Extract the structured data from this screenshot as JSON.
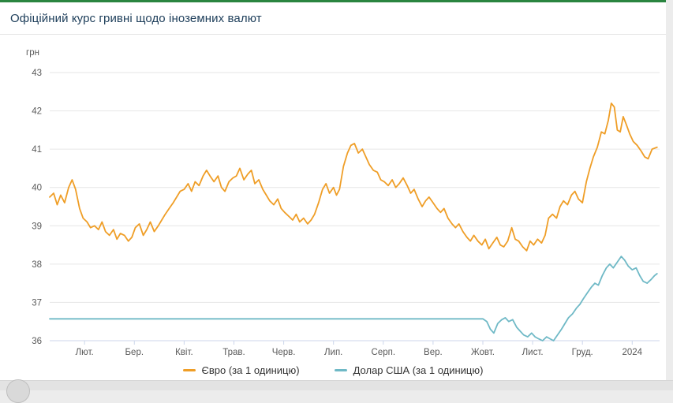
{
  "header": {
    "title": "Офіційний курс гривні щодо іноземних валют"
  },
  "chart_data": {
    "type": "line",
    "title": "Офіційний курс гривні щодо іноземних валют",
    "xlabel": "",
    "ylabel": "грн",
    "ylim": [
      36,
      43
    ],
    "y_ticks": [
      36,
      37,
      38,
      39,
      40,
      41,
      42,
      43
    ],
    "xlim": [
      0.3,
      12.55
    ],
    "x_unit": "months since 2023-01-01 (1 = Feb 1, 12 = Jan 1 2024)",
    "grid": "horizontal",
    "legend_position": "bottom",
    "x_ticks": [
      {
        "label": "Лют.",
        "x": 1
      },
      {
        "label": "Бер.",
        "x": 2
      },
      {
        "label": "Квіт.",
        "x": 3
      },
      {
        "label": "Трав.",
        "x": 4
      },
      {
        "label": "Черв.",
        "x": 5
      },
      {
        "label": "Лип.",
        "x": 6
      },
      {
        "label": "Серп.",
        "x": 7
      },
      {
        "label": "Вер.",
        "x": 8
      },
      {
        "label": "Жовт.",
        "x": 9
      },
      {
        "label": "Лист.",
        "x": 10
      },
      {
        "label": "Груд.",
        "x": 11
      },
      {
        "label": "2024",
        "x": 12
      }
    ],
    "series": [
      {
        "name": "Євро (за 1 одиницю)",
        "color": "#ef9e27",
        "points": [
          [
            0.3,
            39.75
          ],
          [
            0.38,
            39.85
          ],
          [
            0.45,
            39.55
          ],
          [
            0.52,
            39.8
          ],
          [
            0.6,
            39.6
          ],
          [
            0.68,
            40.0
          ],
          [
            0.75,
            40.2
          ],
          [
            0.82,
            39.95
          ],
          [
            0.9,
            39.45
          ],
          [
            0.97,
            39.2
          ],
          [
            1.05,
            39.1
          ],
          [
            1.12,
            38.95
          ],
          [
            1.2,
            39.0
          ],
          [
            1.28,
            38.9
          ],
          [
            1.35,
            39.1
          ],
          [
            1.42,
            38.85
          ],
          [
            1.5,
            38.75
          ],
          [
            1.58,
            38.9
          ],
          [
            1.65,
            38.65
          ],
          [
            1.72,
            38.8
          ],
          [
            1.8,
            38.75
          ],
          [
            1.88,
            38.6
          ],
          [
            1.95,
            38.7
          ],
          [
            2.02,
            38.95
          ],
          [
            2.1,
            39.05
          ],
          [
            2.18,
            38.75
          ],
          [
            2.25,
            38.9
          ],
          [
            2.32,
            39.1
          ],
          [
            2.4,
            38.85
          ],
          [
            2.48,
            39.0
          ],
          [
            2.55,
            39.15
          ],
          [
            2.62,
            39.3
          ],
          [
            2.7,
            39.45
          ],
          [
            2.78,
            39.6
          ],
          [
            2.85,
            39.75
          ],
          [
            2.92,
            39.9
          ],
          [
            3.0,
            39.95
          ],
          [
            3.08,
            40.1
          ],
          [
            3.15,
            39.9
          ],
          [
            3.22,
            40.15
          ],
          [
            3.3,
            40.05
          ],
          [
            3.38,
            40.3
          ],
          [
            3.45,
            40.45
          ],
          [
            3.52,
            40.3
          ],
          [
            3.6,
            40.15
          ],
          [
            3.68,
            40.3
          ],
          [
            3.75,
            40.0
          ],
          [
            3.82,
            39.9
          ],
          [
            3.9,
            40.15
          ],
          [
            3.98,
            40.25
          ],
          [
            4.05,
            40.3
          ],
          [
            4.12,
            40.5
          ],
          [
            4.2,
            40.2
          ],
          [
            4.28,
            40.35
          ],
          [
            4.35,
            40.45
          ],
          [
            4.42,
            40.1
          ],
          [
            4.5,
            40.2
          ],
          [
            4.58,
            39.95
          ],
          [
            4.65,
            39.8
          ],
          [
            4.72,
            39.65
          ],
          [
            4.8,
            39.55
          ],
          [
            4.88,
            39.7
          ],
          [
            4.95,
            39.45
          ],
          [
            5.02,
            39.35
          ],
          [
            5.1,
            39.25
          ],
          [
            5.18,
            39.15
          ],
          [
            5.25,
            39.3
          ],
          [
            5.32,
            39.1
          ],
          [
            5.4,
            39.2
          ],
          [
            5.48,
            39.05
          ],
          [
            5.55,
            39.15
          ],
          [
            5.62,
            39.3
          ],
          [
            5.7,
            39.6
          ],
          [
            5.78,
            39.95
          ],
          [
            5.85,
            40.1
          ],
          [
            5.92,
            39.85
          ],
          [
            6.0,
            40.0
          ],
          [
            6.06,
            39.8
          ],
          [
            6.12,
            39.95
          ],
          [
            6.2,
            40.55
          ],
          [
            6.28,
            40.9
          ],
          [
            6.35,
            41.1
          ],
          [
            6.42,
            41.15
          ],
          [
            6.5,
            40.9
          ],
          [
            6.58,
            41.0
          ],
          [
            6.65,
            40.8
          ],
          [
            6.72,
            40.6
          ],
          [
            6.8,
            40.45
          ],
          [
            6.88,
            40.4
          ],
          [
            6.95,
            40.2
          ],
          [
            7.02,
            40.15
          ],
          [
            7.1,
            40.05
          ],
          [
            7.18,
            40.2
          ],
          [
            7.25,
            40.0
          ],
          [
            7.32,
            40.1
          ],
          [
            7.4,
            40.25
          ],
          [
            7.48,
            40.05
          ],
          [
            7.55,
            39.85
          ],
          [
            7.62,
            39.95
          ],
          [
            7.7,
            39.7
          ],
          [
            7.78,
            39.5
          ],
          [
            7.85,
            39.65
          ],
          [
            7.92,
            39.75
          ],
          [
            8.0,
            39.6
          ],
          [
            8.08,
            39.45
          ],
          [
            8.15,
            39.35
          ],
          [
            8.22,
            39.45
          ],
          [
            8.3,
            39.2
          ],
          [
            8.38,
            39.05
          ],
          [
            8.45,
            38.95
          ],
          [
            8.52,
            39.05
          ],
          [
            8.6,
            38.85
          ],
          [
            8.68,
            38.7
          ],
          [
            8.75,
            38.6
          ],
          [
            8.82,
            38.75
          ],
          [
            8.9,
            38.6
          ],
          [
            8.98,
            38.5
          ],
          [
            9.05,
            38.65
          ],
          [
            9.12,
            38.4
          ],
          [
            9.2,
            38.55
          ],
          [
            9.28,
            38.7
          ],
          [
            9.35,
            38.5
          ],
          [
            9.42,
            38.45
          ],
          [
            9.5,
            38.6
          ],
          [
            9.58,
            38.95
          ],
          [
            9.65,
            38.65
          ],
          [
            9.72,
            38.6
          ],
          [
            9.8,
            38.45
          ],
          [
            9.88,
            38.35
          ],
          [
            9.95,
            38.6
          ],
          [
            10.02,
            38.5
          ],
          [
            10.1,
            38.65
          ],
          [
            10.18,
            38.55
          ],
          [
            10.25,
            38.75
          ],
          [
            10.32,
            39.2
          ],
          [
            10.4,
            39.3
          ],
          [
            10.48,
            39.2
          ],
          [
            10.55,
            39.5
          ],
          [
            10.62,
            39.65
          ],
          [
            10.7,
            39.55
          ],
          [
            10.78,
            39.8
          ],
          [
            10.85,
            39.9
          ],
          [
            10.92,
            39.7
          ],
          [
            11.0,
            39.6
          ],
          [
            11.08,
            40.15
          ],
          [
            11.15,
            40.5
          ],
          [
            11.22,
            40.8
          ],
          [
            11.3,
            41.05
          ],
          [
            11.38,
            41.45
          ],
          [
            11.45,
            41.4
          ],
          [
            11.52,
            41.75
          ],
          [
            11.58,
            42.2
          ],
          [
            11.64,
            42.1
          ],
          [
            11.7,
            41.5
          ],
          [
            11.76,
            41.45
          ],
          [
            11.82,
            41.85
          ],
          [
            11.88,
            41.65
          ],
          [
            11.95,
            41.4
          ],
          [
            12.02,
            41.2
          ],
          [
            12.1,
            41.1
          ],
          [
            12.18,
            40.95
          ],
          [
            12.25,
            40.8
          ],
          [
            12.32,
            40.75
          ],
          [
            12.4,
            41.0
          ],
          [
            12.5,
            41.05
          ]
        ]
      },
      {
        "name": "Долар США (за 1 одиницю)",
        "color": "#6fb9c6",
        "points": [
          [
            0.3,
            36.57
          ],
          [
            9.0,
            36.57
          ],
          [
            9.08,
            36.5
          ],
          [
            9.15,
            36.3
          ],
          [
            9.22,
            36.2
          ],
          [
            9.3,
            36.45
          ],
          [
            9.38,
            36.55
          ],
          [
            9.45,
            36.6
          ],
          [
            9.52,
            36.5
          ],
          [
            9.6,
            36.55
          ],
          [
            9.68,
            36.35
          ],
          [
            9.75,
            36.25
          ],
          [
            9.82,
            36.15
          ],
          [
            9.9,
            36.1
          ],
          [
            9.98,
            36.2
          ],
          [
            10.05,
            36.1
          ],
          [
            10.12,
            36.05
          ],
          [
            10.2,
            36.0
          ],
          [
            10.28,
            36.1
          ],
          [
            10.35,
            36.05
          ],
          [
            10.42,
            36.0
          ],
          [
            10.5,
            36.15
          ],
          [
            10.58,
            36.3
          ],
          [
            10.65,
            36.45
          ],
          [
            10.72,
            36.6
          ],
          [
            10.8,
            36.7
          ],
          [
            10.88,
            36.85
          ],
          [
            10.95,
            36.95
          ],
          [
            11.02,
            37.1
          ],
          [
            11.1,
            37.25
          ],
          [
            11.18,
            37.4
          ],
          [
            11.25,
            37.5
          ],
          [
            11.32,
            37.45
          ],
          [
            11.4,
            37.7
          ],
          [
            11.48,
            37.9
          ],
          [
            11.55,
            38.0
          ],
          [
            11.62,
            37.9
          ],
          [
            11.7,
            38.05
          ],
          [
            11.78,
            38.2
          ],
          [
            11.85,
            38.1
          ],
          [
            11.92,
            37.95
          ],
          [
            12.0,
            37.85
          ],
          [
            12.08,
            37.9
          ],
          [
            12.15,
            37.7
          ],
          [
            12.22,
            37.55
          ],
          [
            12.3,
            37.5
          ],
          [
            12.38,
            37.6
          ],
          [
            12.45,
            37.7
          ],
          [
            12.5,
            37.75
          ]
        ]
      }
    ]
  },
  "colors": {
    "accent_green": "#2a8540",
    "euro_line": "#ef9e27",
    "dollar_line": "#6fb9c6",
    "grid": "#e6e6e6",
    "axis": "#ccd6eb"
  }
}
